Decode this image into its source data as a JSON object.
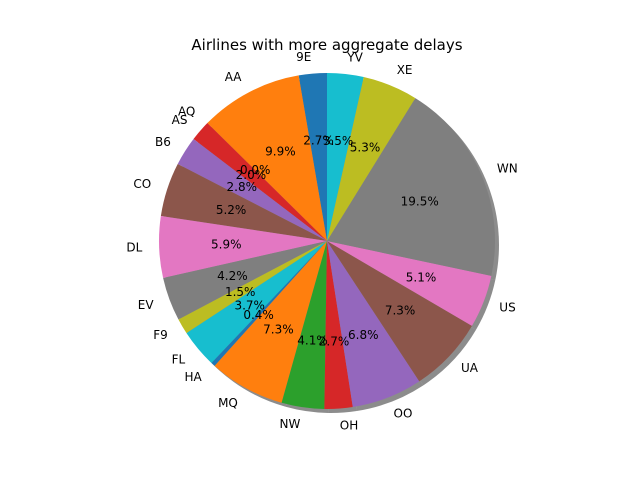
{
  "chart_data": {
    "type": "pie",
    "title": "Airlines with more aggregate delays",
    "start_angle_deg": 90,
    "direction": "counterclockwise",
    "shadow": true,
    "slices": [
      {
        "label": "9E",
        "value": 2.7,
        "pct_label": "2.7%",
        "color": "#1f77b4"
      },
      {
        "label": "AA",
        "value": 9.9,
        "pct_label": "9.9%",
        "color": "#ff7f0e"
      },
      {
        "label": "AQ",
        "value": 0.0,
        "pct_label": "0.0%",
        "color": "#2ca02c"
      },
      {
        "label": "AS",
        "value": 2.0,
        "pct_label": "2.0%",
        "color": "#d62728"
      },
      {
        "label": "B6",
        "value": 2.8,
        "pct_label": "2.8%",
        "color": "#9467bd"
      },
      {
        "label": "CO",
        "value": 5.2,
        "pct_label": "5.2%",
        "color": "#8c564b"
      },
      {
        "label": "DL",
        "value": 5.9,
        "pct_label": "5.9%",
        "color": "#e377c2"
      },
      {
        "label": "EV",
        "value": 4.2,
        "pct_label": "4.2%",
        "color": "#7f7f7f"
      },
      {
        "label": "F9",
        "value": 1.5,
        "pct_label": "1.5%",
        "color": "#bcbd22"
      },
      {
        "label": "FL",
        "value": 3.7,
        "pct_label": "3.7%",
        "color": "#17becf"
      },
      {
        "label": "HA",
        "value": 0.4,
        "pct_label": "0.4%",
        "color": "#1f77b4"
      },
      {
        "label": "MQ",
        "value": 7.3,
        "pct_label": "7.3%",
        "color": "#ff7f0e"
      },
      {
        "label": "NW",
        "value": 4.1,
        "pct_label": "4.1%",
        "color": "#2ca02c"
      },
      {
        "label": "OH",
        "value": 2.7,
        "pct_label": "2.7%",
        "color": "#d62728"
      },
      {
        "label": "OO",
        "value": 6.8,
        "pct_label": "6.8%",
        "color": "#9467bd"
      },
      {
        "label": "UA",
        "value": 7.3,
        "pct_label": "7.3%",
        "color": "#8c564b"
      },
      {
        "label": "US",
        "value": 5.1,
        "pct_label": "5.1%",
        "color": "#e377c2"
      },
      {
        "label": "WN",
        "value": 19.5,
        "pct_label": "19.5%",
        "color": "#7f7f7f"
      },
      {
        "label": "XE",
        "value": 5.3,
        "pct_label": "5.3%",
        "color": "#bcbd22"
      },
      {
        "label": "YV",
        "value": 3.5,
        "pct_label": "3.5%",
        "color": "#17becf"
      }
    ]
  }
}
